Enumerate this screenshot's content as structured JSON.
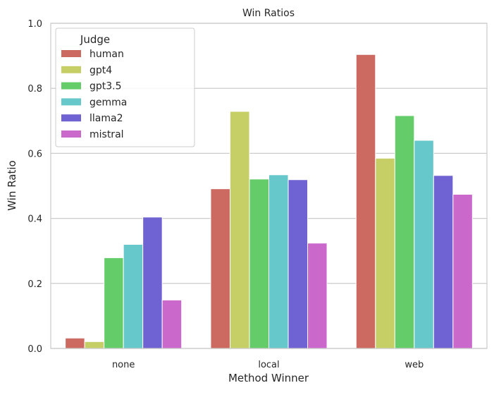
{
  "chart_data": {
    "type": "bar",
    "title": "Win Ratios",
    "xlabel": "Method Winner",
    "ylabel": "Win Ratio",
    "ylim": [
      0,
      1.0
    ],
    "yticks": [
      "0.0",
      "0.2",
      "0.4",
      "0.6",
      "0.8",
      "1.0"
    ],
    "grid": "horizontal",
    "legend": {
      "title": "Judge",
      "placement": "top-left"
    },
    "categories": [
      "none",
      "local",
      "web"
    ],
    "series": [
      {
        "name": "human",
        "color": "#cc6961",
        "values": [
          0.032,
          0.491,
          0.904
        ]
      },
      {
        "name": "gpt4",
        "color": "#c6ce66",
        "values": [
          0.021,
          0.729,
          0.585
        ]
      },
      {
        "name": "gpt3.5",
        "color": "#64cd6a",
        "values": [
          0.279,
          0.521,
          0.716
        ]
      },
      {
        "name": "gemma",
        "color": "#67c8cc",
        "values": [
          0.32,
          0.534,
          0.64
        ]
      },
      {
        "name": "llama2",
        "color": "#6f62d2",
        "values": [
          0.404,
          0.519,
          0.532
        ]
      },
      {
        "name": "mistral",
        "color": "#cb68cb",
        "values": [
          0.149,
          0.324,
          0.474
        ]
      }
    ]
  }
}
